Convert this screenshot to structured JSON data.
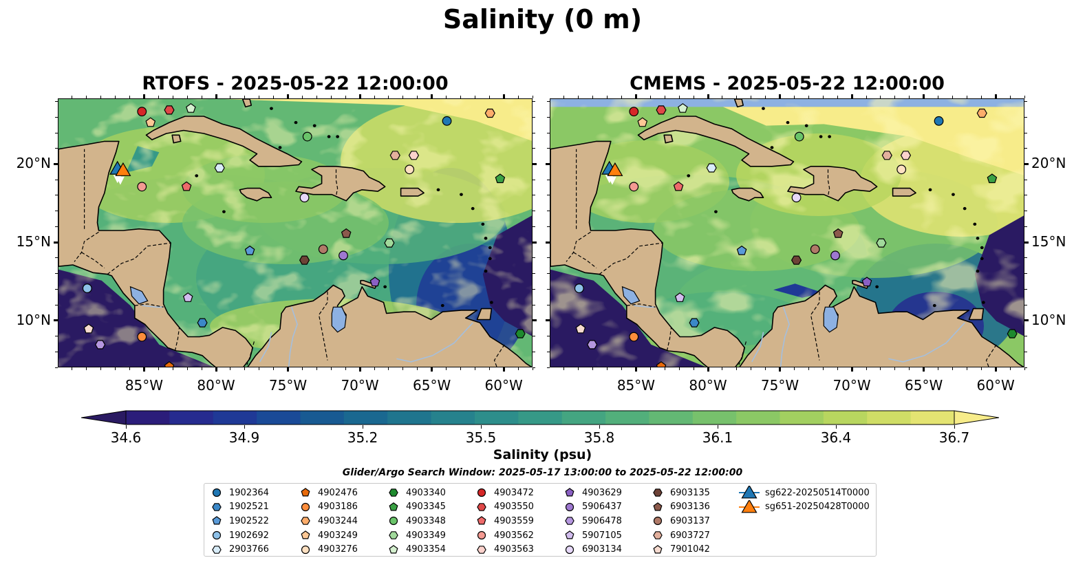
{
  "figure": {
    "suptitle": "Salinity (0 m)",
    "panels": [
      {
        "title": "RTOFS - 2025-05-22 12:00:00"
      },
      {
        "title": "CMEMS - 2025-05-22 12:00:00"
      }
    ],
    "lat_labels": [
      "20°N",
      "15°N",
      "10°N"
    ],
    "lon_labels": [
      "85°W",
      "80°W",
      "75°W",
      "70°W",
      "65°W",
      "60°W"
    ],
    "colorbar": {
      "label": "Salinity (psu)",
      "tick_labels": [
        "34.6",
        "34.9",
        "35.2",
        "35.5",
        "35.8",
        "36.1",
        "36.4",
        "36.7"
      ],
      "vmin": 34.6,
      "vmax": 36.7,
      "colormap": "haline",
      "colors": [
        "#2a1a62",
        "#2b1d7a",
        "#262b8f",
        "#1f3996",
        "#1a4a97",
        "#185a92",
        "#1a6890",
        "#1f758e",
        "#26828d",
        "#2d8e8b",
        "#369987",
        "#44a581",
        "#52af7b",
        "#63b874",
        "#77c16c",
        "#8bc865",
        "#a2cf60",
        "#b8d65f",
        "#cfdd66",
        "#e4e472",
        "#f7ec8a"
      ]
    },
    "search_window": "Glider/Argo Search Window: 2025-05-17 13:00:00 to 2025-05-22 12:00:00",
    "land_color": "#d2b48c",
    "lake_color": "#8db1e2"
  },
  "legend": [
    {
      "label": "1902364",
      "marker": "circle",
      "color": "#1f77b4"
    },
    {
      "label": "1902521",
      "marker": "hexagon",
      "color": "#3b88c8"
    },
    {
      "label": "1902522",
      "marker": "pentagon",
      "color": "#5a9ad8"
    },
    {
      "label": "1902692",
      "marker": "circle",
      "color": "#8ec1e8"
    },
    {
      "label": "2903766",
      "marker": "hexagon",
      "color": "#d8ecf8"
    },
    {
      "label": "4902476",
      "marker": "pentagon",
      "color": "#e86a0a"
    },
    {
      "label": "4903186",
      "marker": "circle",
      "color": "#fd8d3c"
    },
    {
      "label": "4903244",
      "marker": "hexagon",
      "color": "#fdad6b"
    },
    {
      "label": "4903249",
      "marker": "pentagon",
      "color": "#fdc895"
    },
    {
      "label": "4903276",
      "marker": "circle",
      "color": "#fee0c1"
    },
    {
      "label": "4903340",
      "marker": "hexagon",
      "color": "#1e8a2e"
    },
    {
      "label": "4903345",
      "marker": "pentagon",
      "color": "#3ba245"
    },
    {
      "label": "4903348",
      "marker": "circle",
      "color": "#6ac46a"
    },
    {
      "label": "4903349",
      "marker": "hexagon",
      "color": "#a1d99b"
    },
    {
      "label": "4903354",
      "marker": "pentagon",
      "color": "#d5f0cf"
    },
    {
      "label": "4903472",
      "marker": "circle",
      "color": "#d62728"
    },
    {
      "label": "4903550",
      "marker": "hexagon",
      "color": "#e04848"
    },
    {
      "label": "4903559",
      "marker": "pentagon",
      "color": "#ee6a6a"
    },
    {
      "label": "4903562",
      "marker": "circle",
      "color": "#f49a92"
    },
    {
      "label": "4903563",
      "marker": "hexagon",
      "color": "#fbd2cc"
    },
    {
      "label": "4903629",
      "marker": "pentagon",
      "color": "#8a60c4"
    },
    {
      "label": "5906437",
      "marker": "circle",
      "color": "#9e78d0"
    },
    {
      "label": "5906478",
      "marker": "hexagon",
      "color": "#b597df"
    },
    {
      "label": "5907105",
      "marker": "pentagon",
      "color": "#d2bdee"
    },
    {
      "label": "6903134",
      "marker": "circle",
      "color": "#e6d8f8"
    },
    {
      "label": "6903135",
      "marker": "hexagon",
      "color": "#6d4237"
    },
    {
      "label": "6903136",
      "marker": "pentagon",
      "color": "#8c5a4c"
    },
    {
      "label": "6903137",
      "marker": "circle",
      "color": "#b07a68"
    },
    {
      "label": "6903727",
      "marker": "hexagon",
      "color": "#e3b09d"
    },
    {
      "label": "7901042",
      "marker": "pentagon",
      "color": "#f6dbd0"
    },
    {
      "label": "sg622-20250514T0000",
      "marker": "triangle",
      "color": "#1f77b4"
    },
    {
      "label": "sg651-20250428T0000",
      "marker": "triangle",
      "color": "#ff7f0e"
    }
  ],
  "floats": [
    {
      "id": "1902364",
      "lon": -64.0,
      "lat": 22.8
    },
    {
      "id": "1902521",
      "lon": -81.0,
      "lat": 9.9
    },
    {
      "id": "1902522",
      "lon": -77.7,
      "lat": 14.5
    },
    {
      "id": "1902692",
      "lon": -89.0,
      "lat": 12.1
    },
    {
      "id": "2903766",
      "lon": -79.8,
      "lat": 19.8
    },
    {
      "id": "4902476",
      "lon": -83.3,
      "lat": 7.1
    },
    {
      "id": "4903186",
      "lon": -85.2,
      "lat": 9.0
    },
    {
      "id": "4903244",
      "lon": -61.0,
      "lat": 23.3
    },
    {
      "id": "4903249",
      "lon": -84.6,
      "lat": 22.7
    },
    {
      "id": "4903276",
      "lon": -66.6,
      "lat": 19.7
    },
    {
      "id": "4903340",
      "lon": -58.9,
      "lat": 9.2
    },
    {
      "id": "4903345",
      "lon": -60.3,
      "lat": 19.1
    },
    {
      "id": "4903348",
      "lon": -73.7,
      "lat": 21.8
    },
    {
      "id": "4903349",
      "lon": -68.0,
      "lat": 15.0
    },
    {
      "id": "4903354",
      "lon": -81.8,
      "lat": 23.6
    },
    {
      "id": "4903472",
      "lon": -85.2,
      "lat": 23.4
    },
    {
      "id": "4903550",
      "lon": -83.3,
      "lat": 23.5
    },
    {
      "id": "4903559",
      "lon": -82.1,
      "lat": 18.6
    },
    {
      "id": "4903562",
      "lon": -85.2,
      "lat": 18.6
    },
    {
      "id": "4903563",
      "lon": -66.3,
      "lat": 20.6
    },
    {
      "id": "4903629",
      "lon": -69.0,
      "lat": 12.5
    },
    {
      "id": "5906437",
      "lon": -71.2,
      "lat": 14.2
    },
    {
      "id": "5906478",
      "lon": -88.1,
      "lat": 8.5
    },
    {
      "id": "5907105",
      "lon": -82.0,
      "lat": 11.5
    },
    {
      "id": "6903134",
      "lon": -73.9,
      "lat": 17.9
    },
    {
      "id": "6903135",
      "lon": -73.9,
      "lat": 13.9
    },
    {
      "id": "6903136",
      "lon": -71.0,
      "lat": 15.6
    },
    {
      "id": "6903137",
      "lon": -72.6,
      "lat": 14.6
    },
    {
      "id": "6903727",
      "lon": -67.6,
      "lat": 20.6
    },
    {
      "id": "7901042",
      "lon": -88.9,
      "lat": 9.5
    }
  ],
  "gliders": [
    {
      "id": "sg622-20250514T0000",
      "lon": -86.9,
      "lat": 19.7
    },
    {
      "id": "sg651-20250428T0000",
      "lon": -86.7,
      "lat": 19.6
    }
  ]
}
